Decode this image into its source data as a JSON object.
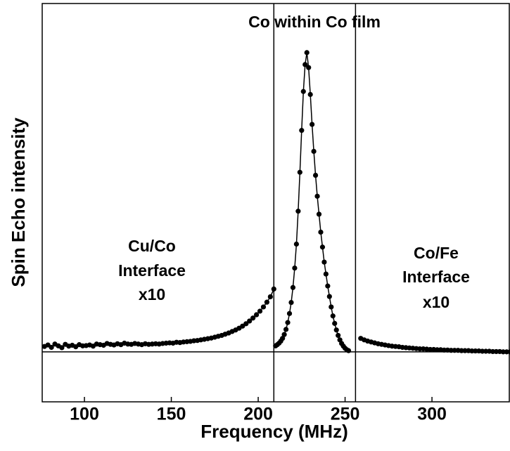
{
  "chart_data": {
    "type": "scatter",
    "title": "Co within Co film",
    "x_label": "Frequency (MHz)",
    "y_label": "Spin Echo intensity",
    "annotations": [
      {
        "lines": [
          "Cu/Co",
          "Interface",
          "x10"
        ]
      },
      {
        "lines": [
          "Co/Fe",
          "Interface",
          "x10"
        ]
      }
    ],
    "xlim": [
      75.7,
      344.5
    ],
    "ylim": [
      -16.7,
      116.4
    ],
    "xticks": [
      100,
      150,
      200,
      250,
      300
    ],
    "vlines": [
      209,
      256
    ],
    "hlines": [
      0
    ],
    "series": [
      {
        "color": "#000000",
        "x": [
          77,
          79,
          81,
          83,
          85,
          87,
          89,
          91,
          93,
          95,
          97,
          99,
          101,
          103,
          105,
          107,
          109,
          111,
          113,
          115,
          117,
          119,
          121,
          123,
          125,
          127,
          129,
          131,
          133,
          135,
          137,
          139,
          141,
          143,
          145,
          147,
          149,
          151,
          153,
          155,
          157,
          159,
          161,
          163,
          165,
          167,
          169,
          171,
          173,
          175,
          177,
          179,
          181,
          183,
          185,
          187,
          189,
          191,
          193,
          195,
          197,
          199,
          201,
          203,
          205,
          207,
          209
        ],
        "values": [
          1.8,
          2.3,
          1.5,
          2.6,
          2.0,
          1.4,
          2.5,
          1.9,
          2.2,
          1.7,
          2.4,
          2.0,
          2.1,
          2.3,
          1.9,
          2.6,
          2.4,
          2.2,
          2.8,
          2.5,
          2.3,
          2.7,
          2.4,
          2.9,
          2.6,
          2.5,
          2.8,
          2.6,
          2.4,
          2.7,
          2.5,
          2.6,
          2.7,
          2.6,
          2.8,
          2.9,
          3.0,
          2.9,
          3.2,
          3.1,
          3.3,
          3.4,
          3.5,
          3.7,
          3.8,
          4.0,
          4.2,
          4.4,
          4.6,
          4.9,
          5.2,
          5.5,
          5.9,
          6.3,
          6.8,
          7.3,
          7.9,
          8.6,
          9.4,
          10.3,
          11.3,
          12.4,
          13.6,
          15.0,
          16.6,
          18.4,
          21.0
        ]
      },
      {
        "color": "#000000",
        "x": [
          210,
          211,
          212,
          213,
          214,
          215,
          216,
          217,
          218,
          219,
          220,
          221,
          222,
          223,
          224,
          225,
          226,
          227,
          228,
          229,
          230,
          231,
          232,
          233,
          234,
          235,
          236,
          237,
          238,
          239,
          240,
          241,
          242,
          243,
          244,
          245,
          246,
          247,
          248,
          249,
          250,
          251,
          252
        ],
        "values": [
          2.0,
          2.4,
          2.9,
          3.6,
          4.5,
          5.8,
          7.5,
          9.8,
          12.8,
          16.5,
          21.5,
          28,
          36,
          47,
          60,
          74,
          87,
          96,
          100,
          95,
          86,
          76,
          67,
          59,
          52,
          46,
          40,
          35,
          30,
          26,
          22,
          18.5,
          15,
          12,
          9.5,
          7.3,
          5.5,
          4.0,
          2.8,
          1.9,
          1.2,
          0.7,
          0.4
        ]
      },
      {
        "color": "#000000",
        "x": [
          259,
          261,
          263,
          265,
          267,
          269,
          271,
          273,
          275,
          277,
          279,
          281,
          283,
          285,
          287,
          289,
          291,
          293,
          295,
          297,
          299,
          301,
          303,
          305,
          307,
          309,
          311,
          313,
          315,
          317,
          319,
          321,
          323,
          325,
          327,
          329,
          331,
          333,
          335,
          337,
          339,
          341,
          343,
          345
        ],
        "values": [
          4.5,
          4.0,
          3.6,
          3.3,
          3.0,
          2.7,
          2.5,
          2.3,
          2.1,
          1.9,
          1.8,
          1.7,
          1.5,
          1.4,
          1.3,
          1.2,
          1.1,
          1.0,
          1.0,
          0.9,
          0.8,
          0.8,
          0.7,
          0.7,
          0.6,
          0.6,
          0.5,
          0.5,
          0.5,
          0.4,
          0.4,
          0.4,
          0.3,
          0.3,
          0.3,
          0.2,
          0.2,
          0.2,
          0.1,
          0.1,
          0.1,
          0.0,
          0.0,
          0.0
        ]
      }
    ]
  }
}
